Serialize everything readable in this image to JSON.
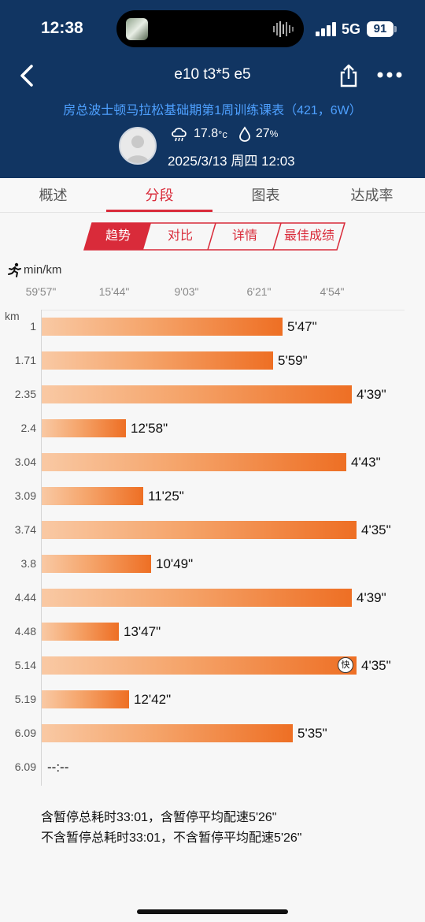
{
  "status": {
    "time": "12:38",
    "network": "5G",
    "battery": "91"
  },
  "nav": {
    "title": "e10 t3*5 e5",
    "subtitle": "房总波士顿马拉松基础期第1周训练课表（421，6W）"
  },
  "weather": {
    "temp": "17.8",
    "temp_unit": "°c",
    "humidity": "27",
    "humidity_unit": "%"
  },
  "datetime": "2025/3/13 周四 12:03",
  "tabs": [
    "概述",
    "分段",
    "图表",
    "达成率"
  ],
  "segments": [
    "趋势",
    "对比",
    "详情",
    "最佳成绩"
  ],
  "chart_data": {
    "type": "bar",
    "orientation": "horizontal",
    "x_unit_label": "min/km",
    "x_ticks": [
      "59'57\"",
      "15'44\"",
      "9'03\"",
      "6'21\"",
      "4'54\""
    ],
    "y_unit_label": "km",
    "categories": [
      "1",
      "1.71",
      "2.35",
      "2.4",
      "3.04",
      "3.09",
      "3.74",
      "3.8",
      "4.44",
      "4.48",
      "5.14",
      "5.19",
      "6.09",
      "6.09"
    ],
    "pace_labels": [
      "5'47\"",
      "5'59\"",
      "4'39\"",
      "12'58\"",
      "4'43\"",
      "11'25\"",
      "4'35\"",
      "10'49\"",
      "4'39\"",
      "13'47\"",
      "4'35\"",
      "12'42\"",
      "5'35\"",
      "--:--"
    ],
    "pace_seconds": [
      347,
      359,
      279,
      778,
      283,
      685,
      275,
      649,
      279,
      827,
      275,
      762,
      335,
      null
    ],
    "fastest_index": 10,
    "fastest_label": "快",
    "bar_color": "#ee6f24"
  },
  "summary": {
    "line1": "含暂停总耗时33:01，含暂停平均配速5'26\"",
    "line2": "不含暂停总耗时33:01，不含暂停平均配速5'26\""
  },
  "colors": {
    "header_bg": "#113562",
    "accent": "#d92b3a",
    "subtitle": "#4ea0ff"
  }
}
